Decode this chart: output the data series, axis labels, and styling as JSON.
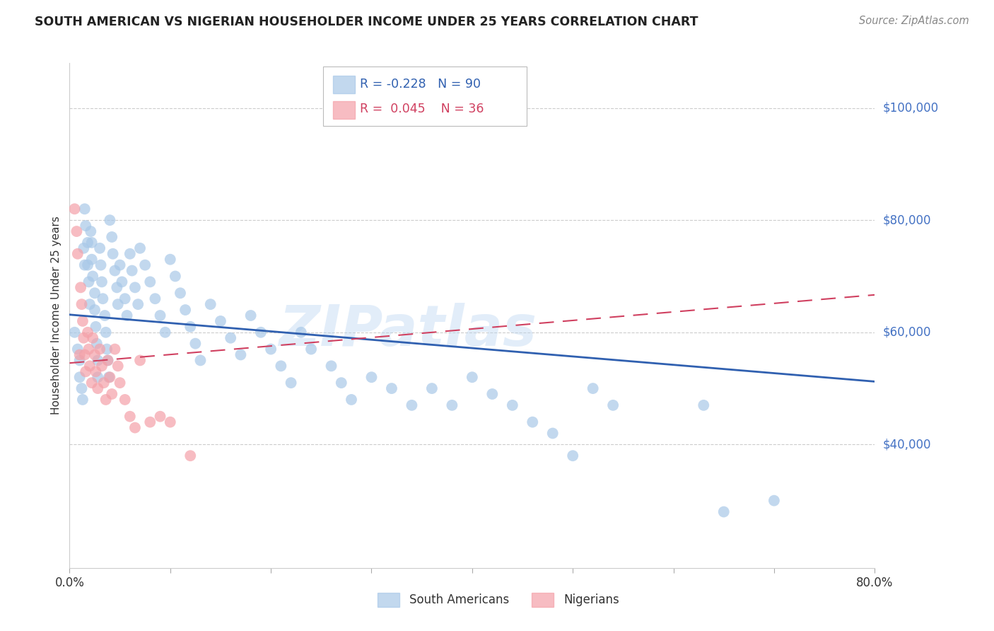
{
  "title": "SOUTH AMERICAN VS NIGERIAN HOUSEHOLDER INCOME UNDER 25 YEARS CORRELATION CHART",
  "source": "Source: ZipAtlas.com",
  "ylabel": "Householder Income Under 25 years",
  "watermark": "ZIPatlas",
  "xlim": [
    0.0,
    0.8
  ],
  "ylim": [
    18000,
    108000
  ],
  "yticks": [
    40000,
    60000,
    80000,
    100000
  ],
  "ytick_labels": [
    "$40,000",
    "$60,000",
    "$80,000",
    "$100,000"
  ],
  "xticks": [
    0.0,
    0.1,
    0.2,
    0.3,
    0.4,
    0.5,
    0.6,
    0.7,
    0.8
  ],
  "south_american_color": "#a8c8e8",
  "nigerian_color": "#f4a0a8",
  "trend_sa_color": "#3060b0",
  "trend_ng_color": "#d04060",
  "R_sa": -0.228,
  "N_sa": 90,
  "R_ng": 0.045,
  "N_ng": 36,
  "sa_x": [
    0.005,
    0.008,
    0.01,
    0.01,
    0.012,
    0.013,
    0.014,
    0.015,
    0.015,
    0.016,
    0.018,
    0.018,
    0.019,
    0.02,
    0.021,
    0.022,
    0.022,
    0.023,
    0.025,
    0.025,
    0.026,
    0.027,
    0.028,
    0.028,
    0.03,
    0.031,
    0.032,
    0.033,
    0.035,
    0.036,
    0.037,
    0.038,
    0.039,
    0.04,
    0.042,
    0.043,
    0.045,
    0.047,
    0.048,
    0.05,
    0.052,
    0.055,
    0.057,
    0.06,
    0.062,
    0.065,
    0.068,
    0.07,
    0.075,
    0.08,
    0.085,
    0.09,
    0.095,
    0.1,
    0.105,
    0.11,
    0.115,
    0.12,
    0.125,
    0.13,
    0.14,
    0.15,
    0.16,
    0.17,
    0.18,
    0.19,
    0.2,
    0.21,
    0.22,
    0.23,
    0.24,
    0.26,
    0.27,
    0.28,
    0.3,
    0.32,
    0.34,
    0.36,
    0.38,
    0.4,
    0.42,
    0.44,
    0.46,
    0.48,
    0.5,
    0.52,
    0.54,
    0.63,
    0.65,
    0.7
  ],
  "sa_y": [
    60000,
    57000,
    55000,
    52000,
    50000,
    48000,
    75000,
    72000,
    82000,
    79000,
    76000,
    72000,
    69000,
    65000,
    78000,
    76000,
    73000,
    70000,
    67000,
    64000,
    61000,
    58000,
    55000,
    52000,
    75000,
    72000,
    69000,
    66000,
    63000,
    60000,
    57000,
    55000,
    52000,
    80000,
    77000,
    74000,
    71000,
    68000,
    65000,
    72000,
    69000,
    66000,
    63000,
    74000,
    71000,
    68000,
    65000,
    75000,
    72000,
    69000,
    66000,
    63000,
    60000,
    73000,
    70000,
    67000,
    64000,
    61000,
    58000,
    55000,
    65000,
    62000,
    59000,
    56000,
    63000,
    60000,
    57000,
    54000,
    51000,
    60000,
    57000,
    54000,
    51000,
    48000,
    52000,
    50000,
    47000,
    50000,
    47000,
    52000,
    49000,
    47000,
    44000,
    42000,
    38000,
    50000,
    47000,
    47000,
    28000,
    30000
  ],
  "ng_x": [
    0.005,
    0.007,
    0.008,
    0.01,
    0.011,
    0.012,
    0.013,
    0.014,
    0.015,
    0.016,
    0.018,
    0.019,
    0.02,
    0.022,
    0.023,
    0.025,
    0.026,
    0.028,
    0.03,
    0.032,
    0.034,
    0.036,
    0.038,
    0.04,
    0.042,
    0.045,
    0.048,
    0.05,
    0.055,
    0.06,
    0.065,
    0.07,
    0.08,
    0.09,
    0.1,
    0.12
  ],
  "ng_y": [
    82000,
    78000,
    74000,
    56000,
    68000,
    65000,
    62000,
    59000,
    56000,
    53000,
    60000,
    57000,
    54000,
    51000,
    59000,
    56000,
    53000,
    50000,
    57000,
    54000,
    51000,
    48000,
    55000,
    52000,
    49000,
    57000,
    54000,
    51000,
    48000,
    45000,
    43000,
    55000,
    44000,
    45000,
    44000,
    38000
  ]
}
